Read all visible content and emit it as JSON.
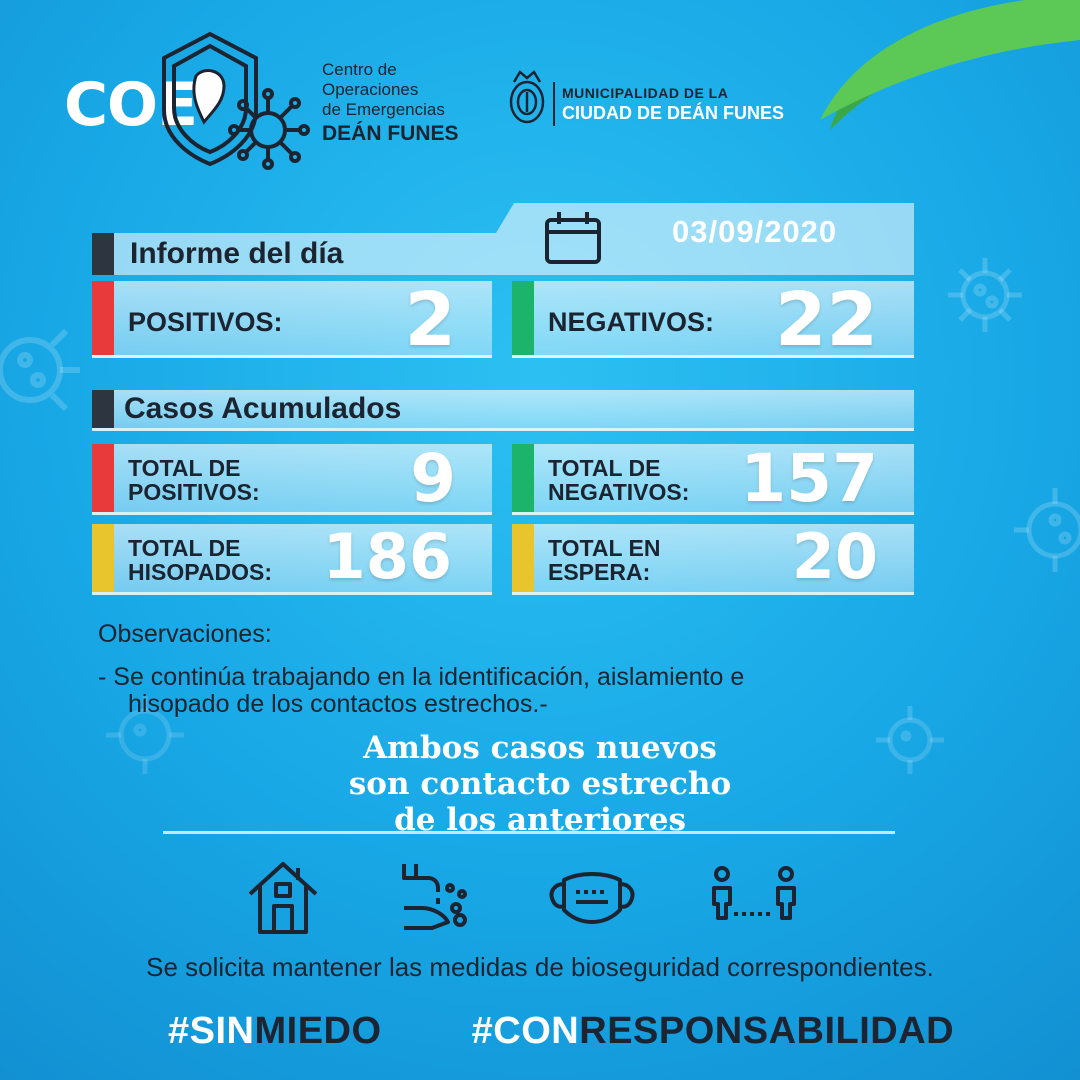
{
  "header": {
    "coe_word": "COE",
    "coe_lines": [
      "Centro de",
      "Operaciones",
      "de Emergencias"
    ],
    "coe_city": "DEÁN FUNES",
    "muni_line1": "MUNICIPALIDAD DE LA",
    "muni_line2": "CIUDAD DE DEÁN FUNES"
  },
  "report": {
    "title": "Informe del día",
    "date": "03/09/2020",
    "positivos_label": "POSITIVOS:",
    "positivos_value": "2",
    "negativos_label": "NEGATIVOS:",
    "negativos_value": "22"
  },
  "accumulated": {
    "title": "Casos Acumulados",
    "total_pos_l1": "TOTAL DE",
    "total_pos_l2": "POSITIVOS:",
    "total_pos_value": "9",
    "total_neg_l1": "TOTAL DE",
    "total_neg_l2": "NEGATIVOS:",
    "total_neg_value": "157",
    "total_hisop_l1": "TOTAL DE",
    "total_hisop_l2": "HISOPADOS:",
    "total_hisop_value": "186",
    "total_esp_l1": "TOTAL EN",
    "total_esp_l2": "ESPERA:",
    "total_esp_value": "20"
  },
  "observations": {
    "title": "Observaciones:",
    "line1": "- Se continúa trabajando en la identificación, aislamiento e",
    "line2": "hisopado de los contactos estrechos.-"
  },
  "highlight": {
    "line1": "Ambos casos nuevos",
    "line2": "son contacto estrecho",
    "line3": "de los anteriores"
  },
  "icons": [
    "house-icon",
    "handwash-icon",
    "mask-icon",
    "distance-icon"
  ],
  "bottom_text": "Se solicita mantener las medidas de bioseguridad correspondientes.",
  "hashtags": {
    "h1_a": "#SIN",
    "h1_b": "MIEDO",
    "h2_a": "#CON",
    "h2_b": "RESPONSABILIDAD"
  },
  "colors": {
    "background": "#18a8e6",
    "dark": "#1b2430",
    "red": "#e8393b",
    "green": "#1cb46b",
    "yellow": "#e8c52c",
    "leaf": "#4bbf4a"
  }
}
